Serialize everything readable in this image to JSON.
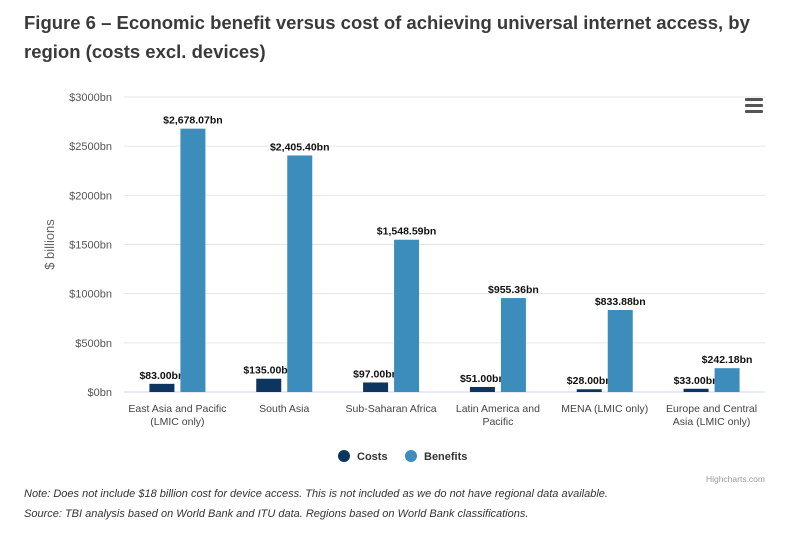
{
  "title": "Figure 6 – Economic benefit versus cost of achieving universal internet access, by region (costs excl. devices)",
  "icons": {
    "menu": "hamburger-menu-icon"
  },
  "chart_data": {
    "type": "bar",
    "categories": [
      [
        "East Asia and Pacific",
        "(LMIC only)"
      ],
      [
        "South Asia"
      ],
      [
        "Sub-Saharan Africa"
      ],
      [
        "Latin America and",
        "Pacific"
      ],
      [
        "MENA (LMIC only)"
      ],
      [
        "Europe and Central",
        "Asia (LMIC only)"
      ]
    ],
    "series": [
      {
        "name": "Costs",
        "color": "#0c3560",
        "values": [
          83.0,
          135.0,
          97.0,
          51.0,
          28.0,
          33.0
        ],
        "labels": [
          "$83.00bn",
          "$135.00bn",
          "$97.00bn",
          "$51.00bn",
          "$28.00bn",
          "$33.00bn"
        ]
      },
      {
        "name": "Benefits",
        "color": "#3d8dbc",
        "values": [
          2678.07,
          2405.4,
          1548.59,
          955.36,
          833.88,
          242.18
        ],
        "labels": [
          "$2,678.07bn",
          "$2,405.40bn",
          "$1,548.59bn",
          "$955.36bn",
          "$833.88bn",
          "$242.18bn"
        ]
      }
    ],
    "ylabel": "$ billions",
    "ylim": [
      0,
      3000
    ],
    "yticks": [
      0,
      500,
      1000,
      1500,
      2000,
      2500,
      3000
    ],
    "ytick_labels": [
      "$0bn",
      "$500bn",
      "$1000bn",
      "$1500bn",
      "$2000bn",
      "$2500bn",
      "$3000bn"
    ],
    "grid": true,
    "legend_position": "bottom-center",
    "credit": "Highcharts.com"
  },
  "notes": {
    "note": "Note: Does not include $18 billion cost for device access. This is not included as we do not have regional data available.",
    "source": "Source: TBI analysis based on World Bank and ITU data. Regions based on World Bank classifications."
  }
}
